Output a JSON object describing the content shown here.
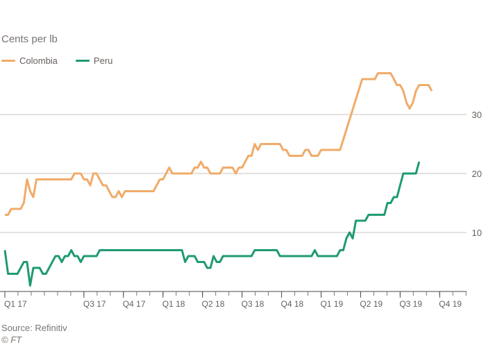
{
  "chart_data": {
    "type": "line",
    "title": "",
    "ylabel": "Cents per lb",
    "xlabel": "",
    "ylim": [
      0,
      40
    ],
    "y_ticks": [
      10,
      20,
      30
    ],
    "x_start": 2017.0,
    "x_end": 2019.92,
    "x_ticks": [
      {
        "label": "Q1 17",
        "x": 2017.0
      },
      {
        "label": "Q3 17",
        "x": 2017.5
      },
      {
        "label": "Q4 17",
        "x": 2017.75
      },
      {
        "label": "Q1 18",
        "x": 2018.0
      },
      {
        "label": "Q2 18",
        "x": 2018.25
      },
      {
        "label": "Q3 18",
        "x": 2018.5
      },
      {
        "label": "Q4 18",
        "x": 2018.75
      },
      {
        "label": "Q1 19",
        "x": 2019.0
      },
      {
        "label": "Q2 19",
        "x": 2019.25
      },
      {
        "label": "Q3 19",
        "x": 2019.5
      },
      {
        "label": "Q4 19",
        "x": 2019.75
      }
    ],
    "grid": true,
    "legend_position": "top-left",
    "series": [
      {
        "name": "Colombia",
        "color": "#f0ab6a",
        "points": [
          [
            2017.0,
            13
          ],
          [
            2017.02,
            13
          ],
          [
            2017.04,
            14
          ],
          [
            2017.1,
            14
          ],
          [
            2017.12,
            15
          ],
          [
            2017.14,
            19
          ],
          [
            2017.16,
            17
          ],
          [
            2017.18,
            16
          ],
          [
            2017.2,
            19
          ],
          [
            2017.42,
            19
          ],
          [
            2017.44,
            20
          ],
          [
            2017.48,
            20
          ],
          [
            2017.5,
            19
          ],
          [
            2017.52,
            19
          ],
          [
            2017.54,
            18
          ],
          [
            2017.56,
            20
          ],
          [
            2017.58,
            20
          ],
          [
            2017.6,
            19
          ],
          [
            2017.62,
            18
          ],
          [
            2017.64,
            18
          ],
          [
            2017.66,
            17
          ],
          [
            2017.68,
            16
          ],
          [
            2017.7,
            16
          ],
          [
            2017.72,
            17
          ],
          [
            2017.74,
            16
          ],
          [
            2017.76,
            17
          ],
          [
            2017.9,
            17
          ],
          [
            2017.94,
            17
          ],
          [
            2017.96,
            18
          ],
          [
            2017.98,
            19
          ],
          [
            2018.0,
            19
          ],
          [
            2018.04,
            21
          ],
          [
            2018.06,
            20
          ],
          [
            2018.18,
            20
          ],
          [
            2018.2,
            21
          ],
          [
            2018.22,
            21
          ],
          [
            2018.24,
            22
          ],
          [
            2018.26,
            21
          ],
          [
            2018.28,
            21
          ],
          [
            2018.3,
            20
          ],
          [
            2018.36,
            20
          ],
          [
            2018.38,
            21
          ],
          [
            2018.44,
            21
          ],
          [
            2018.46,
            20
          ],
          [
            2018.48,
            21
          ],
          [
            2018.5,
            21
          ],
          [
            2018.52,
            22
          ],
          [
            2018.54,
            23
          ],
          [
            2018.56,
            23
          ],
          [
            2018.58,
            25
          ],
          [
            2018.6,
            24
          ],
          [
            2018.62,
            25
          ],
          [
            2018.74,
            25
          ],
          [
            2018.76,
            24
          ],
          [
            2018.78,
            24
          ],
          [
            2018.8,
            23
          ],
          [
            2018.88,
            23
          ],
          [
            2018.9,
            24
          ],
          [
            2018.92,
            24
          ],
          [
            2018.94,
            23
          ],
          [
            2018.98,
            23
          ],
          [
            2019.0,
            24
          ],
          [
            2019.12,
            24
          ],
          [
            2019.26,
            36
          ],
          [
            2019.34,
            36
          ],
          [
            2019.36,
            37
          ],
          [
            2019.44,
            37
          ],
          [
            2019.48,
            35
          ],
          [
            2019.5,
            35
          ],
          [
            2019.52,
            34
          ],
          [
            2019.54,
            32
          ],
          [
            2019.56,
            31
          ],
          [
            2019.58,
            32
          ],
          [
            2019.6,
            34
          ],
          [
            2019.62,
            35
          ],
          [
            2019.68,
            35
          ],
          [
            2019.7,
            34
          ]
        ]
      },
      {
        "name": "Peru",
        "color": "#1e9a73",
        "points": [
          [
            2017.0,
            7
          ],
          [
            2017.02,
            3
          ],
          [
            2017.08,
            3
          ],
          [
            2017.12,
            5
          ],
          [
            2017.14,
            5
          ],
          [
            2017.16,
            1
          ],
          [
            2017.18,
            4
          ],
          [
            2017.22,
            4
          ],
          [
            2017.24,
            3
          ],
          [
            2017.26,
            3
          ],
          [
            2017.32,
            6
          ],
          [
            2017.34,
            6
          ],
          [
            2017.36,
            5
          ],
          [
            2017.38,
            6
          ],
          [
            2017.4,
            6
          ],
          [
            2017.42,
            7
          ],
          [
            2017.44,
            6
          ],
          [
            2017.46,
            6
          ],
          [
            2017.48,
            5
          ],
          [
            2017.5,
            6
          ],
          [
            2017.58,
            6
          ],
          [
            2017.6,
            7
          ],
          [
            2017.86,
            7
          ],
          [
            2017.9,
            7
          ],
          [
            2018.12,
            7
          ],
          [
            2018.14,
            5
          ],
          [
            2018.16,
            6
          ],
          [
            2018.2,
            6
          ],
          [
            2018.22,
            5
          ],
          [
            2018.26,
            5
          ],
          [
            2018.28,
            4
          ],
          [
            2018.3,
            4
          ],
          [
            2018.32,
            6
          ],
          [
            2018.34,
            5
          ],
          [
            2018.36,
            5
          ],
          [
            2018.38,
            6
          ],
          [
            2018.56,
            6
          ],
          [
            2018.58,
            7
          ],
          [
            2018.72,
            7
          ],
          [
            2018.74,
            6
          ],
          [
            2018.94,
            6
          ],
          [
            2018.96,
            7
          ],
          [
            2018.98,
            6
          ],
          [
            2019.1,
            6
          ],
          [
            2019.12,
            7
          ],
          [
            2019.14,
            7
          ],
          [
            2019.16,
            9
          ],
          [
            2019.18,
            10
          ],
          [
            2019.2,
            9
          ],
          [
            2019.22,
            12
          ],
          [
            2019.28,
            12
          ],
          [
            2019.3,
            13
          ],
          [
            2019.4,
            13
          ],
          [
            2019.42,
            15
          ],
          [
            2019.44,
            15
          ],
          [
            2019.46,
            16
          ],
          [
            2019.48,
            16
          ],
          [
            2019.5,
            18
          ],
          [
            2019.52,
            20
          ],
          [
            2019.6,
            20
          ],
          [
            2019.62,
            22
          ]
        ]
      }
    ]
  },
  "footer": {
    "source": "Source: Refinitiv",
    "credit": "© FT"
  }
}
